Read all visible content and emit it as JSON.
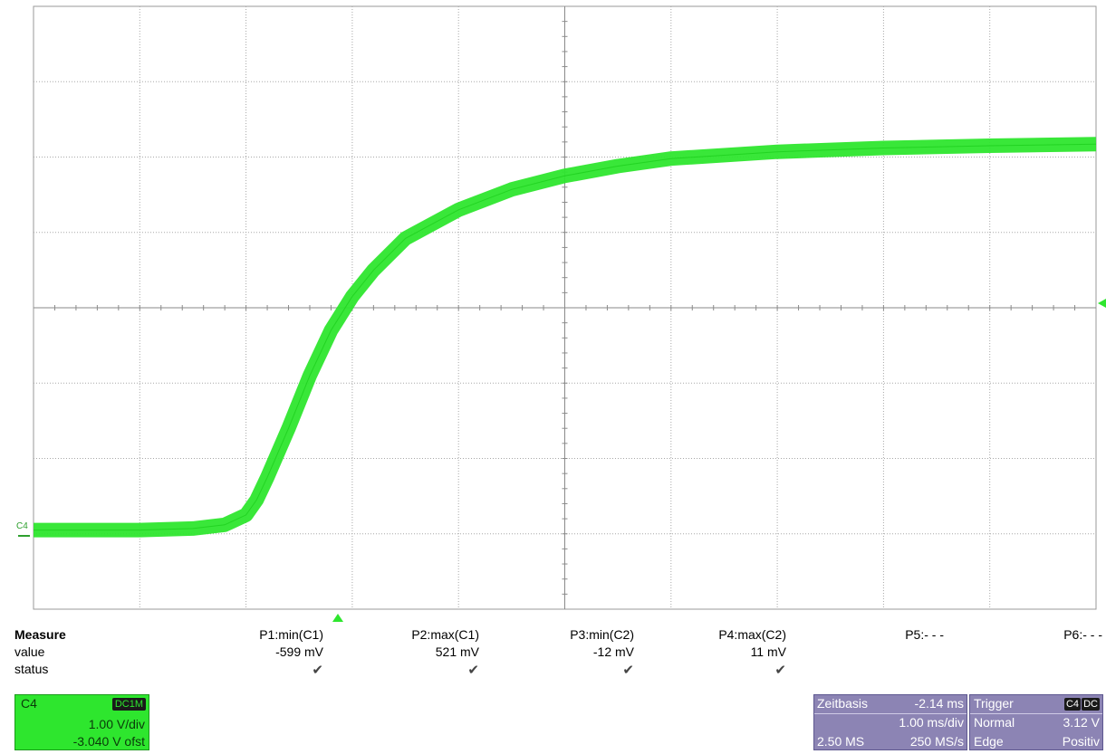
{
  "channel_tag": "C4",
  "measure": {
    "header": "Measure",
    "row_labels": [
      "value",
      "status"
    ],
    "columns": [
      {
        "param": "P1:min(C1)",
        "value": "-599 mV",
        "status": "✔"
      },
      {
        "param": "P2:max(C1)",
        "value": "521 mV",
        "status": "✔"
      },
      {
        "param": "P3:min(C2)",
        "value": "-12 mV",
        "status": "✔"
      },
      {
        "param": "P4:max(C2)",
        "value": "11 mV",
        "status": "✔"
      },
      {
        "param": "P5:- - -",
        "value": "",
        "status": ""
      },
      {
        "param": "P6:- - -",
        "value": "",
        "status": ""
      }
    ]
  },
  "channel_box": {
    "name": "C4",
    "coupling": "DC1M",
    "scale": "1.00 V/div",
    "offset": "-3.040 V ofst",
    "color": "#2ee62e"
  },
  "timebase": {
    "label": "Zeitbasis",
    "delay": "-2.14 ms",
    "scale": "1.00 ms/div",
    "points": "2.50 MS",
    "rate": "250 MS/s"
  },
  "trigger": {
    "label": "Trigger",
    "source": "C4",
    "coupling": "DC",
    "mode": "Normal",
    "level": "3.12 V",
    "type": "Edge",
    "slope": "Positiv"
  },
  "chart_data": {
    "type": "line",
    "grid": true,
    "x_divisions": 10,
    "y_divisions": 8,
    "series": [
      {
        "color": "#2ee62e",
        "x": [
          0,
          0.5,
          1.0,
          1.5,
          1.8,
          2.0,
          2.1,
          2.2,
          2.4,
          2.6,
          2.8,
          3.0,
          3.2,
          3.5,
          4.0,
          4.5,
          5.0,
          5.5,
          6.0,
          7.0,
          8.0,
          9.0,
          10.0
        ],
        "y": [
          1.05,
          1.05,
          1.05,
          1.07,
          1.12,
          1.25,
          1.45,
          1.75,
          2.4,
          3.1,
          3.7,
          4.15,
          4.5,
          4.92,
          5.3,
          5.57,
          5.75,
          5.88,
          5.98,
          6.07,
          6.12,
          6.15,
          6.17
        ]
      }
    ]
  }
}
